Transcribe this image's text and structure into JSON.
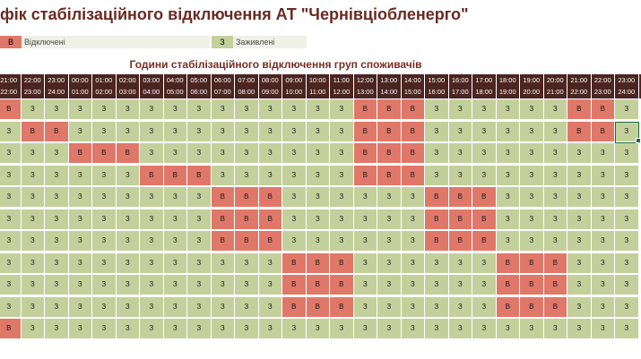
{
  "title": "фік стабілізаційного відключення АТ \"Чернівціобленерго\"",
  "legend": {
    "off_code": "В",
    "off_label": "Відключені",
    "on_code": "З",
    "on_label": "Заживлені"
  },
  "grid_title": "Години стабілізаційного відключення груп споживачів",
  "hours": [
    [
      "21:00",
      "22:00"
    ],
    [
      "22:00",
      "23:00"
    ],
    [
      "23:00",
      "24:00"
    ],
    [
      "00:00",
      "01:00"
    ],
    [
      "01:00",
      "02:00"
    ],
    [
      "02:00",
      "03:00"
    ],
    [
      "03:00",
      "04:00"
    ],
    [
      "04:00",
      "05:00"
    ],
    [
      "05:00",
      "06:00"
    ],
    [
      "06:00",
      "07:00"
    ],
    [
      "07:00",
      "08:00"
    ],
    [
      "08:00",
      "09:00"
    ],
    [
      "09:00",
      "10:00"
    ],
    [
      "10:00",
      "11:00"
    ],
    [
      "11:00",
      "12:00"
    ],
    [
      "12:00",
      "13:00"
    ],
    [
      "13:00",
      "14:00"
    ],
    [
      "14:00",
      "15:00"
    ],
    [
      "15:00",
      "16:00"
    ],
    [
      "16:00",
      "17:00"
    ],
    [
      "17:00",
      "18:00"
    ],
    [
      "18:00",
      "19:00"
    ],
    [
      "19:00",
      "20:00"
    ],
    [
      "20:00",
      "21:00"
    ],
    [
      "21:00",
      "22:00"
    ],
    [
      "22:00",
      "23:00"
    ],
    [
      "23:00",
      "24:00"
    ]
  ],
  "rows": [
    "ВЗЗЗЗЗЗЗЗЗЗЗЗЗЗВВВЗЗЗЗЗЗВВЗ",
    "ЗВВЗЗЗЗЗЗЗЗЗЗЗЗВВВЗЗЗЗЗЗВВЗ",
    "ЗЗЗВВВЗЗЗЗЗЗЗЗЗВВВЗЗЗЗЗЗЗЗЗ",
    "ЗЗЗЗЗЗВВВЗЗЗЗЗЗВВВЗЗЗЗЗЗЗЗЗ",
    "ЗЗЗЗЗЗЗЗЗВВВЗЗЗЗЗЗВВВЗЗЗЗЗЗ",
    "ЗЗЗЗЗЗЗЗЗВВВЗЗЗЗЗЗВВВЗЗЗЗЗЗ",
    "ЗЗЗЗЗЗЗЗЗВВВЗЗЗЗЗЗВВВЗЗЗЗЗЗ",
    "ЗЗЗЗЗЗЗЗЗЗЗЗВВВЗЗЗЗЗЗВВВЗЗЗ",
    "ЗЗЗЗЗЗЗЗЗЗЗЗВВВЗЗЗЗЗЗВВВЗЗЗ",
    "ЗЗЗЗЗЗЗЗЗЗЗЗВВВЗЗЗЗЗЗВВВЗЗЗ",
    "ВЗЗЗЗЗЗЗЗЗЗЗЗЗЗЗЗЗЗЗЗЗЗЗЗЗЗ"
  ],
  "selected_cell": {
    "row": 1,
    "col": 26
  },
  "colors": {
    "on": "#c4d09c",
    "off": "#e0786a",
    "header": "#4b2520"
  }
}
